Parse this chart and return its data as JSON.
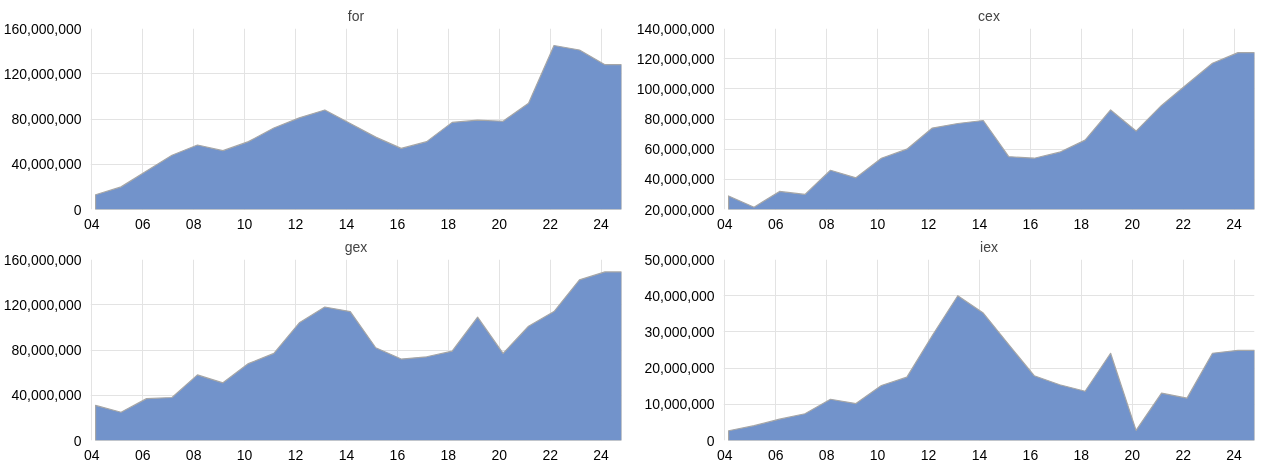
{
  "chart_data": [
    {
      "type": "area",
      "title": "for",
      "color": "#7293cb",
      "grid": true,
      "x": [
        2004.15,
        2005.15,
        2006.15,
        2007.15,
        2008.15,
        2009.15,
        2010.15,
        2011.15,
        2012.15,
        2013.15,
        2014.15,
        2015.15,
        2016.15,
        2017.15,
        2018.15,
        2019.15,
        2020.15,
        2021.15,
        2022.15,
        2023.15,
        2024.15,
        2024.8
      ],
      "values": [
        13000000,
        20000000,
        34000000,
        48000000,
        57000000,
        52000000,
        60000000,
        72000000,
        81000000,
        88000000,
        76000000,
        64000000,
        54000000,
        60000000,
        77000000,
        79000000,
        78000000,
        94000000,
        145000000,
        141000000,
        128000000,
        128000000
      ],
      "xlim": [
        2003.95,
        2024.8
      ],
      "xticks": [
        {
          "value": 2004,
          "label": "04"
        },
        {
          "value": 2006,
          "label": "06"
        },
        {
          "value": 2008,
          "label": "08"
        },
        {
          "value": 2010,
          "label": "10"
        },
        {
          "value": 2012,
          "label": "12"
        },
        {
          "value": 2014,
          "label": "14"
        },
        {
          "value": 2016,
          "label": "16"
        },
        {
          "value": 2018,
          "label": "18"
        },
        {
          "value": 2020,
          "label": "20"
        },
        {
          "value": 2022,
          "label": "22"
        },
        {
          "value": 2024,
          "label": "24"
        }
      ],
      "ylim": [
        0,
        160000000
      ],
      "yticks": [
        0,
        {
          "value": 40000000,
          "label": "40,000,000"
        },
        {
          "value": 80000000,
          "label": "80,000,000"
        },
        {
          "value": 120000000,
          "label": "120,000,000"
        },
        {
          "value": 160000000,
          "label": "160,000,000"
        }
      ]
    },
    {
      "type": "area",
      "title": "cex",
      "color": "#7293cb",
      "grid": true,
      "x": [
        2004.15,
        2005.15,
        2006.15,
        2007.15,
        2008.15,
        2009.15,
        2010.15,
        2011.15,
        2012.15,
        2013.15,
        2014.15,
        2015.15,
        2016.15,
        2017.15,
        2018.15,
        2019.15,
        2020.15,
        2021.15,
        2022.15,
        2023.15,
        2024.15,
        2024.8
      ],
      "values": [
        29000000,
        21500000,
        32000000,
        30000000,
        46000000,
        41000000,
        54000000,
        60000000,
        74000000,
        77000000,
        79000000,
        55000000,
        54000000,
        58000000,
        66000000,
        86000000,
        72000000,
        89000000,
        103000000,
        117000000,
        124000000,
        124000000
      ],
      "xlim": [
        2003.95,
        2024.8
      ],
      "xticks": [
        {
          "value": 2004,
          "label": "04"
        },
        {
          "value": 2006,
          "label": "06"
        },
        {
          "value": 2008,
          "label": "08"
        },
        {
          "value": 2010,
          "label": "10"
        },
        {
          "value": 2012,
          "label": "12"
        },
        {
          "value": 2014,
          "label": "14"
        },
        {
          "value": 2016,
          "label": "16"
        },
        {
          "value": 2018,
          "label": "18"
        },
        {
          "value": 2020,
          "label": "20"
        },
        {
          "value": 2022,
          "label": "22"
        },
        {
          "value": 2024,
          "label": "24"
        }
      ],
      "ylim": [
        20000000,
        140000000
      ],
      "yticks": [
        {
          "value": 20000000,
          "label": "20,000,000"
        },
        {
          "value": 40000000,
          "label": "40,000,000"
        },
        {
          "value": 60000000,
          "label": "60,000,000"
        },
        {
          "value": 80000000,
          "label": "80,000,000"
        },
        {
          "value": 100000000,
          "label": "100,000,000"
        },
        {
          "value": 120000000,
          "label": "120,000,000"
        },
        {
          "value": 140000000,
          "label": "140,000,000"
        }
      ]
    },
    {
      "type": "area",
      "title": "gex",
      "color": "#7293cb",
      "grid": true,
      "x": [
        2004.15,
        2005.15,
        2006.15,
        2007.15,
        2008.15,
        2009.15,
        2010.15,
        2011.15,
        2012.15,
        2013.15,
        2014.15,
        2015.15,
        2016.15,
        2017.15,
        2018.15,
        2019.15,
        2020.15,
        2021.15,
        2022.15,
        2023.15,
        2024.15,
        2024.8
      ],
      "values": [
        31000000,
        25000000,
        37000000,
        38000000,
        58000000,
        51000000,
        68000000,
        77000000,
        104000000,
        118000000,
        114000000,
        82000000,
        72000000,
        74000000,
        79000000,
        109000000,
        77000000,
        101000000,
        114000000,
        142000000,
        149000000,
        149000000
      ],
      "xlim": [
        2003.95,
        2024.8
      ],
      "xticks": [
        {
          "value": 2004,
          "label": "04"
        },
        {
          "value": 2006,
          "label": "06"
        },
        {
          "value": 2008,
          "label": "08"
        },
        {
          "value": 2010,
          "label": "10"
        },
        {
          "value": 2012,
          "label": "12"
        },
        {
          "value": 2014,
          "label": "14"
        },
        {
          "value": 2016,
          "label": "16"
        },
        {
          "value": 2018,
          "label": "18"
        },
        {
          "value": 2020,
          "label": "20"
        },
        {
          "value": 2022,
          "label": "22"
        },
        {
          "value": 2024,
          "label": "24"
        }
      ],
      "ylim": [
        0,
        160000000
      ],
      "yticks": [
        0,
        {
          "value": 40000000,
          "label": "40,000,000"
        },
        {
          "value": 80000000,
          "label": "80,000,000"
        },
        {
          "value": 120000000,
          "label": "120,000,000"
        },
        {
          "value": 160000000,
          "label": "160,000,000"
        }
      ]
    },
    {
      "type": "area",
      "title": "iex",
      "color": "#7293cb",
      "grid": true,
      "x": [
        2004.15,
        2005.15,
        2006.15,
        2007.15,
        2008.15,
        2009.15,
        2010.15,
        2011.15,
        2012.15,
        2013.15,
        2014.15,
        2015.15,
        2016.15,
        2017.15,
        2018.15,
        2019.15,
        2020.15,
        2021.15,
        2022.15,
        2023.15,
        2024.15,
        2024.8
      ],
      "values": [
        2700000,
        4100000,
        5900000,
        7400000,
        11400000,
        10200000,
        15200000,
        17500000,
        29000000,
        40000000,
        35200000,
        26500000,
        17900000,
        15400000,
        13600000,
        24100000,
        2800000,
        13100000,
        11700000,
        24100000,
        24900000,
        24900000
      ],
      "xlim": [
        2003.95,
        2024.8
      ],
      "xticks": [
        {
          "value": 2004,
          "label": "04"
        },
        {
          "value": 2006,
          "label": "06"
        },
        {
          "value": 2008,
          "label": "08"
        },
        {
          "value": 2010,
          "label": "10"
        },
        {
          "value": 2012,
          "label": "12"
        },
        {
          "value": 2014,
          "label": "14"
        },
        {
          "value": 2016,
          "label": "16"
        },
        {
          "value": 2018,
          "label": "18"
        },
        {
          "value": 2020,
          "label": "20"
        },
        {
          "value": 2022,
          "label": "22"
        },
        {
          "value": 2024,
          "label": "24"
        }
      ],
      "ylim": [
        0,
        50000000
      ],
      "yticks": [
        0,
        {
          "value": 10000000,
          "label": "10,000,000"
        },
        {
          "value": 20000000,
          "label": "20,000,000"
        },
        {
          "value": 30000000,
          "label": "30,000,000"
        },
        {
          "value": 40000000,
          "label": "40,000,000"
        },
        {
          "value": 50000000,
          "label": "50,000,000"
        }
      ]
    }
  ]
}
